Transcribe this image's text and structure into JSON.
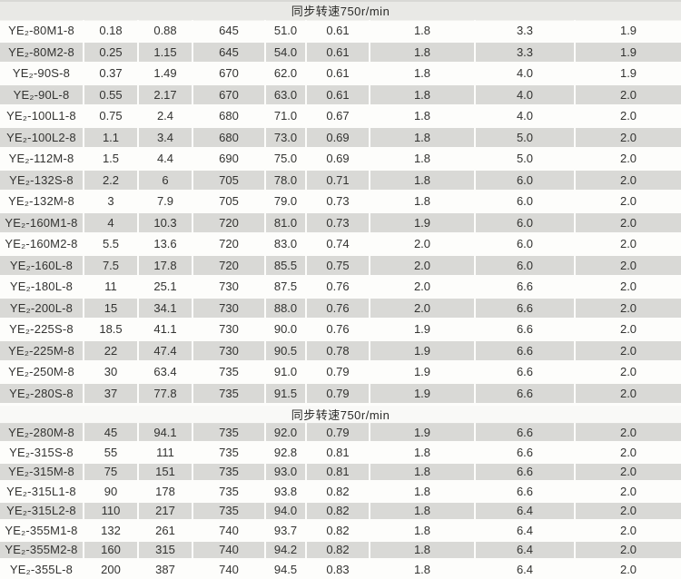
{
  "sections": [
    {
      "header": "同步转速750r/min",
      "rows": [
        [
          "YE₂-80M1-8",
          "0.18",
          "0.88",
          "645",
          "51.0",
          "0.61",
          "1.8",
          "3.3",
          "1.9"
        ],
        [
          "YE₂-80M2-8",
          "0.25",
          "1.15",
          "645",
          "54.0",
          "0.61",
          "1.8",
          "3.3",
          "1.9"
        ],
        [
          "YE₂-90S-8",
          "0.37",
          "1.49",
          "670",
          "62.0",
          "0.61",
          "1.8",
          "4.0",
          "1.9"
        ],
        [
          "YE₂-90L-8",
          "0.55",
          "2.17",
          "670",
          "63.0",
          "0.61",
          "1.8",
          "4.0",
          "2.0"
        ],
        [
          "YE₂-100L1-8",
          "0.75",
          "2.4",
          "680",
          "71.0",
          "0.67",
          "1.8",
          "4.0",
          "2.0"
        ],
        [
          "YE₂-100L2-8",
          "1.1",
          "3.4",
          "680",
          "73.0",
          "0.69",
          "1.8",
          "5.0",
          "2.0"
        ],
        [
          "YE₂-112M-8",
          "1.5",
          "4.4",
          "690",
          "75.0",
          "0.69",
          "1.8",
          "5.0",
          "2.0"
        ],
        [
          "YE₂-132S-8",
          "2.2",
          "6",
          "705",
          "78.0",
          "0.71",
          "1.8",
          "6.0",
          "2.0"
        ],
        [
          "YE₂-132M-8",
          "3",
          "7.9",
          "705",
          "79.0",
          "0.73",
          "1.8",
          "6.0",
          "2.0"
        ],
        [
          "YE₂-160M1-8",
          "4",
          "10.3",
          "720",
          "81.0",
          "0.73",
          "1.9",
          "6.0",
          "2.0"
        ],
        [
          "YE₂-160M2-8",
          "5.5",
          "13.6",
          "720",
          "83.0",
          "0.74",
          "2.0",
          "6.0",
          "2.0"
        ],
        [
          "YE₂-160L-8",
          "7.5",
          "17.8",
          "720",
          "85.5",
          "0.75",
          "2.0",
          "6.0",
          "2.0"
        ],
        [
          "YE₂-180L-8",
          "11",
          "25.1",
          "730",
          "87.5",
          "0.76",
          "2.0",
          "6.6",
          "2.0"
        ],
        [
          "YE₂-200L-8",
          "15",
          "34.1",
          "730",
          "88.0",
          "0.76",
          "2.0",
          "6.6",
          "2.0"
        ],
        [
          "YE₂-225S-8",
          "18.5",
          "41.1",
          "730",
          "90.0",
          "0.76",
          "1.9",
          "6.6",
          "2.0"
        ],
        [
          "YE₂-225M-8",
          "22",
          "47.4",
          "730",
          "90.5",
          "0.78",
          "1.9",
          "6.6",
          "2.0"
        ],
        [
          "YE₂-250M-8",
          "30",
          "63.4",
          "735",
          "91.0",
          "0.79",
          "1.9",
          "6.6",
          "2.0"
        ],
        [
          "YE₂-280S-8",
          "37",
          "77.8",
          "735",
          "91.5",
          "0.79",
          "1.9",
          "6.6",
          "2.0"
        ]
      ]
    },
    {
      "header": "同步转速750r/min",
      "rows": [
        [
          "YE₂-280M-8",
          "45",
          "94.1",
          "735",
          "92.0",
          "0.79",
          "1.9",
          "6.6",
          "2.0"
        ],
        [
          "YE₂-315S-8",
          "55",
          "111",
          "735",
          "92.8",
          "0.81",
          "1.8",
          "6.6",
          "2.0"
        ],
        [
          "YE₂-315M-8",
          "75",
          "151",
          "735",
          "93.0",
          "0.81",
          "1.8",
          "6.6",
          "2.0"
        ],
        [
          "YE₂-315L1-8",
          "90",
          "178",
          "735",
          "93.8",
          "0.82",
          "1.8",
          "6.6",
          "2.0"
        ],
        [
          "YE₂-315L2-8",
          "110",
          "217",
          "735",
          "94.0",
          "0.82",
          "1.8",
          "6.4",
          "2.0"
        ],
        [
          "YE₂-355M1-8",
          "132",
          "261",
          "740",
          "93.7",
          "0.82",
          "1.8",
          "6.4",
          "2.0"
        ],
        [
          "YE₂-355M2-8",
          "160",
          "315",
          "740",
          "94.2",
          "0.82",
          "1.8",
          "6.4",
          "2.0"
        ],
        [
          "YE₂-355L-8",
          "200",
          "387",
          "740",
          "94.5",
          "0.83",
          "1.8",
          "6.4",
          "2.0"
        ]
      ]
    }
  ],
  "colors": {
    "stripe_gray": "#d9d9d6",
    "band_top": "#e9e9e6",
    "band_mid": "#f9f9f7",
    "text": "#333331",
    "background": "#fdfdfb"
  }
}
